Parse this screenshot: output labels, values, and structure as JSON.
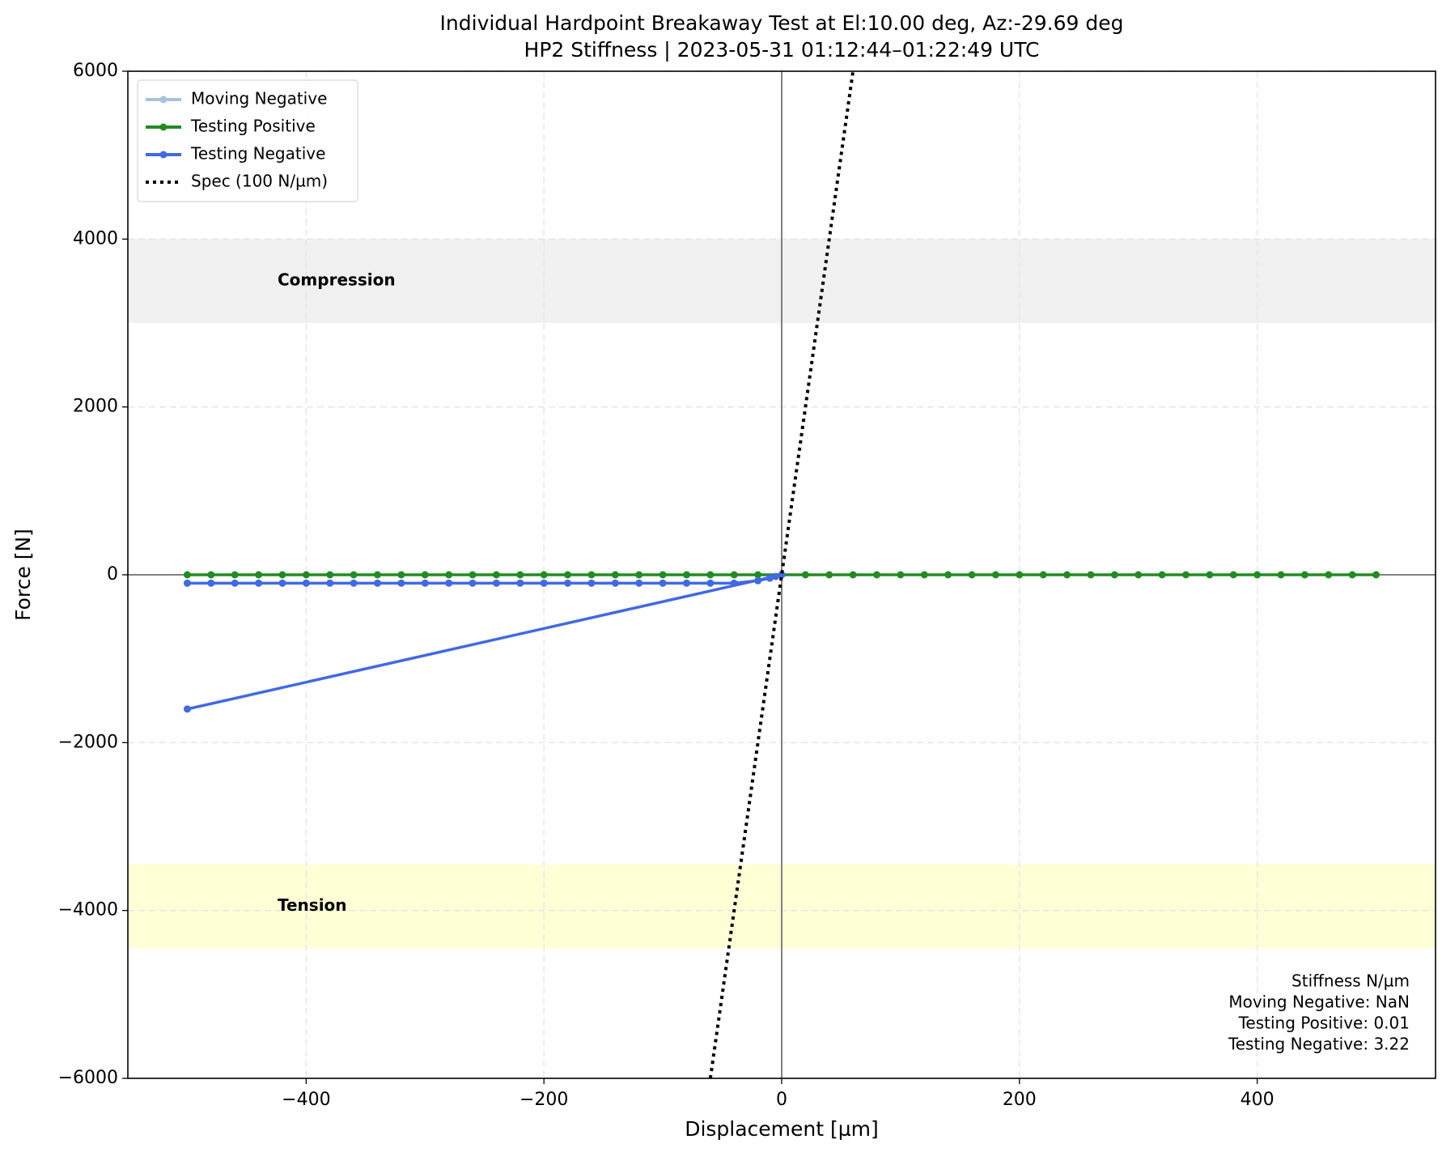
{
  "chart_data": {
    "type": "line",
    "title": "Individual Hardpoint Breakaway Test at El:10.00 deg, Az:-29.69 deg",
    "subtitle": "HP2 Stiffness | 2023-05-31 01:12:44–01:22:49 UTC",
    "x_label": "Displacement [µm]",
    "y_label": "Force [N]",
    "xlim": [
      -550,
      550
    ],
    "ylim": [
      -6000,
      6000
    ],
    "xticks": [
      {
        "value": -400,
        "label": "−400"
      },
      {
        "value": -200,
        "label": "−200"
      },
      0,
      200,
      400
    ],
    "yticks": [
      {
        "value": -6000,
        "label": "−6000"
      },
      {
        "value": -4000,
        "label": "−4000"
      },
      {
        "value": -2000,
        "label": "−2000"
      },
      0,
      2000,
      4000,
      6000
    ],
    "grid": true,
    "legend": "upper left",
    "bands": [
      {
        "label": "Compression",
        "range": [
          3000,
          4000
        ],
        "color": "#f0f0f0"
      },
      {
        "label": "Tension",
        "range": [
          -4450,
          -3450
        ],
        "color": "#ffffd6"
      }
    ],
    "series": [
      {
        "name": "Moving Negative",
        "color": "#a9c1d9",
        "style": "solid",
        "markers": true,
        "x": [],
        "values": []
      },
      {
        "name": "Testing Positive",
        "color": "#228b22",
        "style": "solid",
        "markers": true,
        "x": [
          -500,
          -480,
          -460,
          -440,
          -420,
          -400,
          -380,
          -360,
          -340,
          -320,
          -300,
          -280,
          -260,
          -240,
          -220,
          -200,
          -180,
          -160,
          -140,
          -120,
          -100,
          -80,
          -60,
          -40,
          -20,
          0,
          20,
          40,
          60,
          80,
          100,
          120,
          140,
          160,
          180,
          200,
          220,
          240,
          260,
          280,
          300,
          320,
          340,
          360,
          380,
          400,
          420,
          440,
          460,
          480,
          500
        ],
        "values": [
          0,
          0,
          0,
          0,
          0,
          0,
          0,
          0,
          0,
          0,
          0,
          0,
          0,
          0,
          0,
          0,
          0,
          0,
          0,
          0,
          0,
          0,
          0,
          0,
          0,
          0,
          0,
          0,
          0,
          0,
          0,
          0,
          0,
          0,
          0,
          0,
          0,
          0,
          0,
          0,
          0,
          0,
          0,
          0,
          0,
          0,
          0,
          0,
          0,
          0,
          0
        ]
      },
      {
        "name": "Testing Negative",
        "color": "#4169e1",
        "style": "solid",
        "markers": true,
        "x": [
          -500,
          0,
          -5,
          -10,
          -20,
          -40,
          -60,
          -80,
          -100,
          -120,
          -140,
          -160,
          -180,
          -200,
          -220,
          -240,
          -260,
          -280,
          -300,
          -320,
          -340,
          -360,
          -380,
          -400,
          -420,
          -440,
          -460,
          -480,
          -500
        ],
        "values": [
          -1600,
          0,
          -20,
          -40,
          -70,
          -100,
          -100,
          -100,
          -100,
          -100,
          -100,
          -100,
          -100,
          -100,
          -100,
          -100,
          -100,
          -100,
          -100,
          -100,
          -100,
          -100,
          -100,
          -100,
          -100,
          -100,
          -100,
          -100,
          -100
        ]
      },
      {
        "name": "Spec (100 N/µm)",
        "color": "#000000",
        "style": "dotted",
        "markers": false,
        "x": [
          -60,
          60
        ],
        "values": [
          -6000,
          6000
        ]
      }
    ],
    "stats_box": [
      "Stiffness N/µm",
      "Moving Negative:  NaN",
      "Testing Positive: 0.01",
      "Testing Negative: 3.22"
    ]
  }
}
